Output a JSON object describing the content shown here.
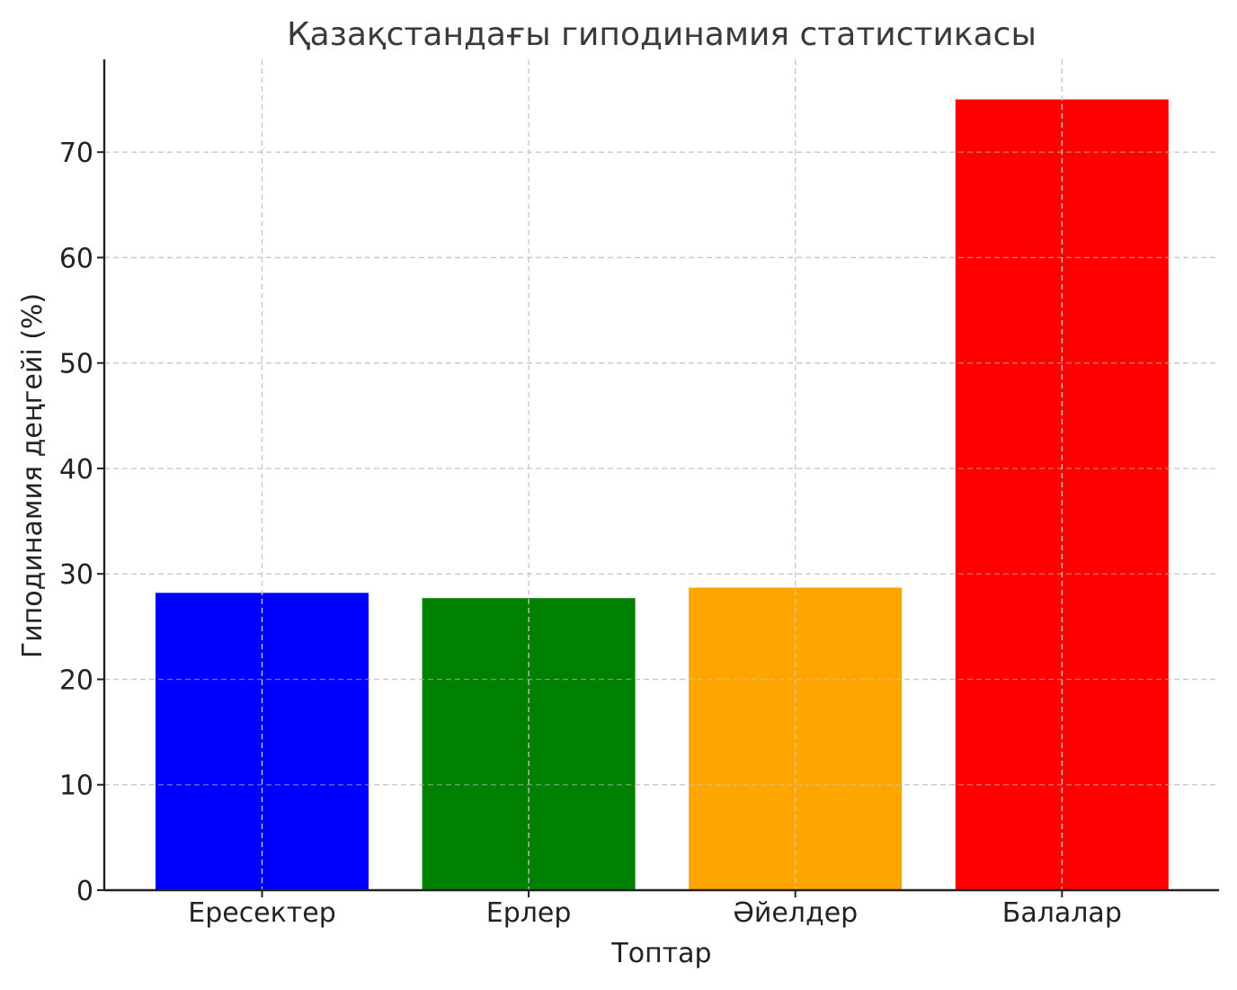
{
  "chart_data": {
    "type": "bar",
    "title": "Қазақстандағы гиподинамия статистикасы",
    "xlabel": "Топтар",
    "ylabel": "Гиподинамия деңгейі (%)",
    "categories": [
      "Ересектер",
      "Ерлер",
      "Әйелдер",
      "Балалар"
    ],
    "values": [
      28.2,
      27.7,
      28.7,
      75.0
    ],
    "colors": [
      "#0000ff",
      "#008000",
      "#ffa500",
      "#ff0000"
    ],
    "ylim": [
      0,
      78.8
    ],
    "yticks": [
      0,
      10,
      20,
      30,
      40,
      50,
      60,
      70
    ],
    "grid": true,
    "grid_style": "dashed",
    "legend": "none"
  }
}
